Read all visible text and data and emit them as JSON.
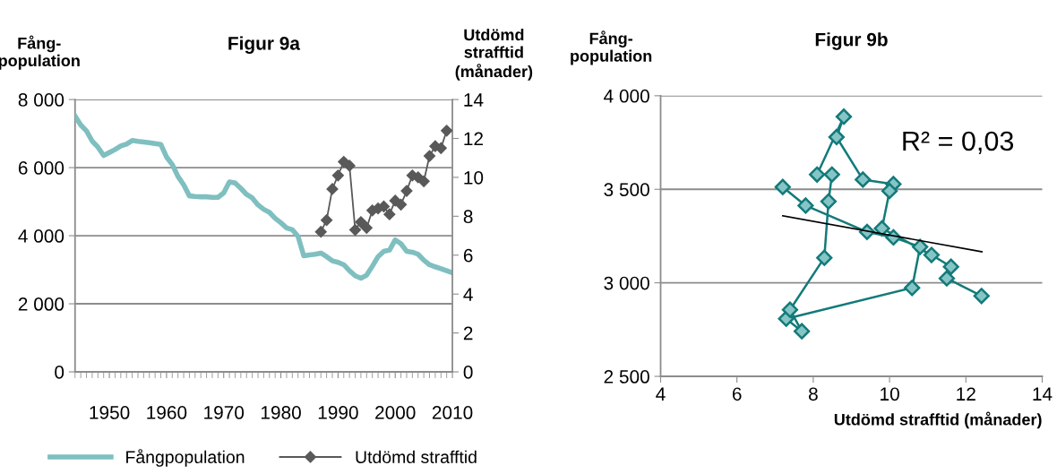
{
  "chart_data": [
    {
      "type": "line",
      "title": "Figur 9a",
      "ylabel": "Fång-\npopulation",
      "y2label": "Utdömd\nstrafftid\n(månader)",
      "xlim": [
        1944,
        2010
      ],
      "xticks": [
        1950,
        1960,
        1970,
        1980,
        1990,
        2000,
        2010
      ],
      "ylim": [
        0,
        8000
      ],
      "yticks": [
        {
          "value": 0,
          "label": "0"
        },
        {
          "value": 2000,
          "label": "2 000"
        },
        {
          "value": 4000,
          "label": "4 000"
        },
        {
          "value": 6000,
          "label": "6 000"
        },
        {
          "value": 8000,
          "label": "8 000"
        }
      ],
      "y2lim": [
        0,
        14
      ],
      "y2ticks": [
        0,
        2,
        4,
        6,
        8,
        10,
        12,
        14
      ],
      "grid": "y",
      "legend": "bottom",
      "series": [
        {
          "name": "Fångpopulation",
          "color": "#7fbfc0",
          "marker": "none",
          "x": [
            1944,
            1945,
            1946,
            1947,
            1948,
            1949,
            1950,
            1951,
            1952,
            1953,
            1954,
            1955,
            1956,
            1957,
            1958,
            1959,
            1960,
            1961,
            1962,
            1963,
            1964,
            1965,
            1966,
            1967,
            1968,
            1969,
            1970,
            1971,
            1972,
            1973,
            1974,
            1975,
            1976,
            1977,
            1978,
            1979,
            1980,
            1981,
            1982,
            1983,
            1984,
            1985,
            1986,
            1987,
            1988,
            1989,
            1990,
            1991,
            1992,
            1993,
            1994,
            1995,
            1996,
            1997,
            1998,
            1999,
            2000,
            2001,
            2002,
            2003,
            2004,
            2005,
            2006,
            2007,
            2008,
            2009,
            2010
          ],
          "values": [
            7516,
            7253,
            7077,
            6778,
            6602,
            6356,
            6444,
            6532,
            6637,
            6690,
            6796,
            6769,
            6752,
            6734,
            6708,
            6681,
            6312,
            6092,
            5741,
            5495,
            5169,
            5152,
            5143,
            5143,
            5125,
            5125,
            5257,
            5582,
            5547,
            5389,
            5213,
            5108,
            4905,
            4774,
            4686,
            4510,
            4378,
            4229,
            4176,
            3982,
            3411,
            3437,
            3455,
            3490,
            3385,
            3262,
            3218,
            3147,
            2971,
            2822,
            2752,
            2840,
            3103,
            3385,
            3543,
            3578,
            3877,
            3763,
            3543,
            3516,
            3455,
            3279,
            3147,
            3086,
            3033,
            2971,
            2910
          ]
        },
        {
          "name": "Utdömd strafftid",
          "color": "#595959",
          "marker": "diamond",
          "axis": "y2",
          "x": [
            1987,
            1988,
            1989,
            1990,
            1991,
            1992,
            1993,
            1994,
            1995,
            1996,
            1997,
            1998,
            1999,
            2000,
            2001,
            2002,
            2003,
            2004,
            2005,
            2006,
            2007,
            2008,
            2009
          ],
          "values": [
            7.2,
            7.8,
            9.4,
            10.1,
            10.8,
            10.6,
            7.3,
            7.7,
            7.4,
            8.3,
            8.4,
            8.5,
            8.1,
            8.8,
            8.6,
            9.3,
            10.1,
            10.0,
            9.8,
            11.1,
            11.6,
            11.5,
            12.4
          ]
        }
      ]
    },
    {
      "type": "scatter",
      "title": "Figur 9b",
      "ylabel": "Fång-\npopulation",
      "xlabel": "Utdömd strafftid (månader)",
      "xlim": [
        4,
        14
      ],
      "xticks": [
        4,
        6,
        8,
        10,
        12,
        14
      ],
      "ylim": [
        2500,
        4000
      ],
      "yticks": [
        {
          "value": 2500,
          "label": "2 500"
        },
        {
          "value": 3000,
          "label": "3 000"
        },
        {
          "value": 3500,
          "label": "3 500"
        },
        {
          "value": 4000,
          "label": "4 000"
        }
      ],
      "grid": "y",
      "annotations": [
        "R² = 0,03"
      ],
      "series": [
        {
          "type": "line",
          "color": "#137a7a",
          "marker": "diamond",
          "x": [
            7.2,
            7.8,
            9.41,
            10.1,
            10.8,
            10.59,
            7.29,
            7.7,
            7.39,
            8.29,
            8.4,
            8.49,
            8.1,
            8.8,
            8.61,
            9.3,
            10.1,
            10.0,
            9.8,
            11.1,
            11.61,
            11.5,
            12.41
          ],
          "values": [
            3512,
            3413,
            3272,
            3243,
            3192,
            2973,
            2808,
            2741,
            2856,
            3134,
            3435,
            3579,
            3579,
            3888,
            3779,
            3552,
            3528,
            3491,
            3291,
            3149,
            3086,
            3024,
            2930
          ]
        },
        {
          "type": "line",
          "color": "#000000",
          "marker": "none",
          "x": [
            7.2,
            12.42
          ],
          "values": [
            3358,
            3166
          ]
        }
      ]
    }
  ]
}
